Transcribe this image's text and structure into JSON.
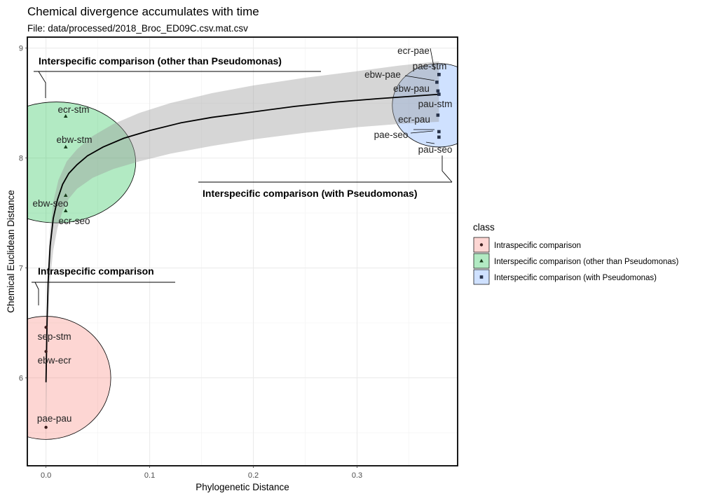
{
  "chart_data": {
    "type": "scatter",
    "title": "Chemical divergence accumulates with time",
    "subtitle": "File: data/processed/2018_Broc_ED09C.csv.mat.csv",
    "xlabel": "Phylogenetic Distance",
    "ylabel": "Chemical Euclidean Distance",
    "xlim": [
      -0.018,
      0.397
    ],
    "ylim": [
      5.2,
      9.1
    ],
    "xticks": [
      0.0,
      0.1,
      0.2,
      0.3
    ],
    "xtick_labels": [
      "0.0",
      "0.1",
      "0.2",
      "0.3"
    ],
    "yticks": [
      6,
      7,
      8,
      9
    ],
    "ytick_labels": [
      "6",
      "7",
      "8",
      "9"
    ],
    "grid": true,
    "legend_title": "class",
    "legend_position": "right",
    "series": [
      {
        "name": "Intraspecific comparison",
        "shape": "circle",
        "color": "#f8766d",
        "fill": "#f8766d",
        "points": [
          {
            "label": "sep-stm",
            "x": 0.0,
            "y": 6.46
          },
          {
            "label": "ebw-ecr",
            "x": 0.0,
            "y": 6.24
          },
          {
            "label": "pae-pau",
            "x": 0.0,
            "y": 5.55
          }
        ],
        "ellipse": {
          "cx": 0.0,
          "cy": 6.0,
          "rx": 0.0625,
          "ry": 0.56
        }
      },
      {
        "name": "Interspecific comparison (other than Pseudomonas)",
        "shape": "triangle",
        "color": "#00ba38",
        "fill": "#00ba38",
        "points": [
          {
            "label": "ecr-stm",
            "x": 0.019,
            "y": 8.38
          },
          {
            "label": "ebw-stm",
            "x": 0.019,
            "y": 8.1
          },
          {
            "label": "ebw-seo",
            "x": 0.019,
            "y": 7.66
          },
          {
            "label": "ecr-seo",
            "x": 0.019,
            "y": 7.52
          }
        ],
        "ellipse": {
          "cx": 0.01,
          "cy": 7.96,
          "rx": 0.0765,
          "ry": 0.55
        }
      },
      {
        "name": "Interspecific comparison (with Pseudomonas)",
        "shape": "square",
        "color": "#619cff",
        "fill": "#619cff",
        "points": [
          {
            "label": "ecr-pae",
            "x": 0.379,
            "y": 8.76
          },
          {
            "label": "pae-stm",
            "x": 0.379,
            "y": 8.76
          },
          {
            "label": "ebw-pae",
            "x": 0.377,
            "y": 8.69
          },
          {
            "label": "ebw-pau",
            "x": 0.378,
            "y": 8.61
          },
          {
            "label": "pau-stm",
            "x": 0.379,
            "y": 8.58
          },
          {
            "label": "ecr-pau",
            "x": 0.378,
            "y": 8.39
          },
          {
            "label": "pae-seo",
            "x": 0.379,
            "y": 8.24
          },
          {
            "label": "pau-seo",
            "x": 0.379,
            "y": 8.19
          }
        ],
        "ellipse": {
          "cx": 0.379,
          "cy": 8.48,
          "rx": 0.045,
          "ry": 0.38
        }
      }
    ],
    "fit": {
      "method": "log-smooth",
      "curve": [
        [
          0.0,
          5.96
        ],
        [
          0.001,
          6.5
        ],
        [
          0.002,
          6.86
        ],
        [
          0.004,
          7.2
        ],
        [
          0.007,
          7.45
        ],
        [
          0.011,
          7.62
        ],
        [
          0.016,
          7.76
        ],
        [
          0.022,
          7.86
        ],
        [
          0.03,
          7.94
        ],
        [
          0.04,
          8.02
        ],
        [
          0.055,
          8.1
        ],
        [
          0.075,
          8.18
        ],
        [
          0.1,
          8.25
        ],
        [
          0.13,
          8.32
        ],
        [
          0.16,
          8.37
        ],
        [
          0.2,
          8.42
        ],
        [
          0.24,
          8.47
        ],
        [
          0.28,
          8.51
        ],
        [
          0.32,
          8.54
        ],
        [
          0.35,
          8.56
        ],
        [
          0.379,
          8.58
        ]
      ],
      "band_upper": [
        [
          0.0,
          6.0
        ],
        [
          0.001,
          6.7
        ],
        [
          0.002,
          7.05
        ],
        [
          0.004,
          7.35
        ],
        [
          0.007,
          7.6
        ],
        [
          0.012,
          7.8
        ],
        [
          0.02,
          7.97
        ],
        [
          0.03,
          8.08
        ],
        [
          0.045,
          8.2
        ],
        [
          0.065,
          8.31
        ],
        [
          0.09,
          8.41
        ],
        [
          0.12,
          8.5
        ],
        [
          0.16,
          8.59
        ],
        [
          0.2,
          8.66
        ],
        [
          0.25,
          8.73
        ],
        [
          0.3,
          8.79
        ],
        [
          0.34,
          8.84
        ],
        [
          0.379,
          8.88
        ]
      ],
      "band_lower": [
        [
          0.0,
          5.42
        ],
        [
          0.001,
          6.15
        ],
        [
          0.002,
          6.55
        ],
        [
          0.004,
          6.9
        ],
        [
          0.007,
          7.16
        ],
        [
          0.011,
          7.36
        ],
        [
          0.016,
          7.52
        ],
        [
          0.022,
          7.63
        ],
        [
          0.03,
          7.72
        ],
        [
          0.045,
          7.82
        ],
        [
          0.065,
          7.9
        ],
        [
          0.09,
          7.97
        ],
        [
          0.12,
          8.04
        ],
        [
          0.16,
          8.11
        ],
        [
          0.2,
          8.17
        ],
        [
          0.25,
          8.23
        ],
        [
          0.3,
          8.28
        ],
        [
          0.34,
          8.31
        ],
        [
          0.379,
          8.33
        ]
      ]
    },
    "group_labels": [
      "Interspecific comparison (other than Pseudomonas)",
      "Interspecific comparison (with Pseudomonas)",
      "Intraspecific comparison"
    ]
  }
}
